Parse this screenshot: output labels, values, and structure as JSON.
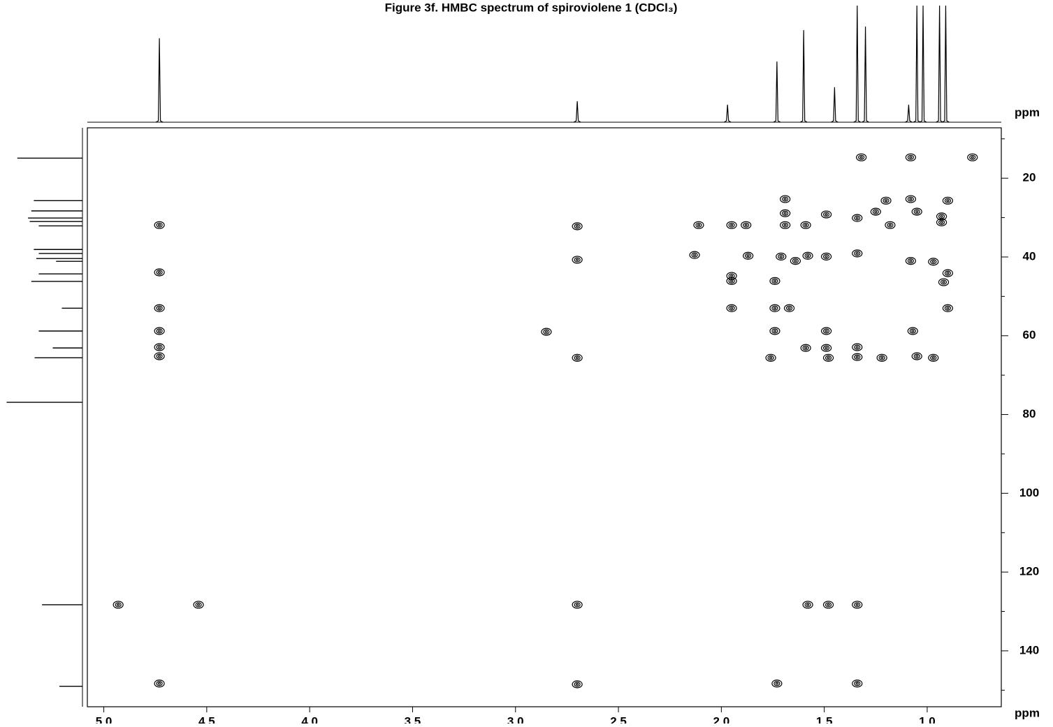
{
  "chart_data": {
    "type": "scatter",
    "title": "Figure 3f. HMBC spectrum of spiroviolene 1 (CDCl₃)",
    "x_label": "ppm",
    "y_label": "ppm",
    "xlim": [
      5.08,
      0.64
    ],
    "ylim": [
      7.2,
      154.2
    ],
    "xticks": [
      {
        "value": 5,
        "label": "5.0"
      },
      4.5,
      {
        "value": 4,
        "label": "4.0"
      },
      3.5,
      {
        "value": 3,
        "label": "3.0"
      },
      2.5,
      {
        "value": 2,
        "label": "2.0"
      },
      1.5,
      {
        "value": 1,
        "label": "1.0"
      }
    ],
    "yticks": [
      20,
      40,
      60,
      80,
      100,
      120,
      140
    ],
    "y_minor_ticks": [
      10,
      30,
      50,
      70,
      90,
      110,
      130,
      150
    ],
    "color": "#000000",
    "x": [
      1.32,
      1.08,
      0.78,
      1.08,
      0.9,
      1.2,
      1.25,
      1.05,
      0.93,
      0.93,
      1.18,
      1.34,
      1.59,
      1.69,
      1.95,
      1.69,
      1.69,
      1.49,
      2.11,
      1.88,
      4.73,
      2.7,
      2.7,
      4.73,
      4.73,
      4.73,
      4.73,
      4.73,
      2.7,
      2.85,
      2.13,
      1.87,
      1.71,
      1.64,
      1.58,
      1.49,
      1.34,
      1.08,
      0.97,
      1.95,
      1.95,
      1.74,
      0.92,
      0.9,
      1.95,
      1.74,
      1.67,
      0.9,
      1.74,
      1.49,
      1.07,
      1.59,
      1.49,
      1.34,
      1.34,
      1.48,
      1.22,
      1.05,
      0.97,
      1.76,
      4.93,
      4.54,
      2.7,
      1.58,
      1.48,
      1.34,
      4.73,
      2.7,
      1.73,
      1.34
    ],
    "y": [
      14.7,
      14.7,
      14.7,
      25.3,
      25.7,
      25.7,
      28.5,
      28.5,
      29.7,
      31.2,
      31.9,
      30.1,
      31.9,
      31.9,
      31.9,
      28.9,
      25.3,
      29.2,
      31.9,
      31.9,
      31.9,
      32.2,
      40.7,
      43.9,
      53.0,
      58.8,
      62.9,
      65.2,
      65.6,
      59.0,
      39.5,
      39.7,
      39.9,
      41.0,
      39.7,
      39.9,
      39.1,
      41.0,
      41.2,
      44.8,
      46.1,
      46.1,
      46.4,
      44.1,
      53.0,
      53.0,
      53.0,
      53.0,
      58.8,
      58.8,
      58.8,
      63.1,
      63.1,
      62.9,
      65.4,
      65.6,
      65.6,
      65.2,
      65.6,
      65.6,
      128.3,
      128.3,
      128.3,
      128.3,
      128.3,
      128.3,
      148.3,
      148.5,
      148.3,
      148.3
    ],
    "proton_projection": {
      "x": [
        4.73,
        2.7,
        1.97,
        1.73,
        1.6,
        1.45,
        1.34,
        1.3,
        1.09,
        1.05,
        1.02,
        0.94,
        0.91
      ],
      "values": [
        72,
        18,
        15,
        52,
        79,
        30,
        100,
        82,
        15,
        100,
        100,
        100,
        100
      ],
      "ylim": [
        0,
        100
      ]
    },
    "carbon_projection": {
      "y": [
        14.9,
        25.7,
        28.3,
        30.1,
        31.0,
        32.1,
        38.1,
        39.1,
        40.4,
        41.1,
        44.3,
        46.2,
        53.0,
        58.8,
        63.1,
        65.6,
        76.9,
        128.3,
        149.0
      ],
      "values": [
        79,
        59,
        62,
        66,
        64,
        53,
        59,
        53,
        56,
        32,
        53,
        62,
        25,
        53,
        36,
        58,
        92,
        49,
        28
      ],
      "xlim": [
        0,
        100
      ]
    }
  }
}
